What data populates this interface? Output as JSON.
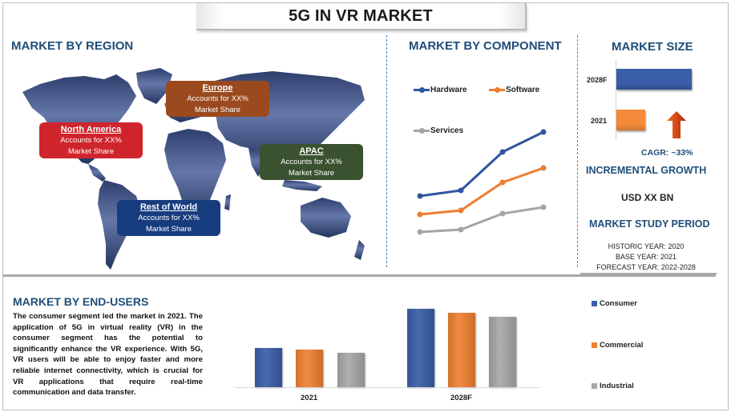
{
  "title": "5G IN VR MARKET",
  "region": {
    "heading": "MARKET BY REGION",
    "boxes": [
      {
        "name": "North America",
        "line1": "Accounts for XX%",
        "line2": "Market Share",
        "color": "#d0242c"
      },
      {
        "name": "Europe",
        "line1": "Accounts for XX%",
        "line2": "Market Share",
        "color": "#9a4a1e"
      },
      {
        "name": "APAC",
        "line1": "Accounts for XX%",
        "line2": "Market Share",
        "color": "#3b5230"
      },
      {
        "name": "Rest of World",
        "line1": "Accounts for XX%",
        "line2": "Market Share",
        "color": "#173c7e"
      }
    ]
  },
  "component": {
    "heading": "MARKET BY COMPONENT",
    "legend": [
      {
        "label": "Hardware",
        "color": "#2e56a0"
      },
      {
        "label": "Software",
        "color": "#ed7d31"
      },
      {
        "label": "Services",
        "color": "#a5a5a5"
      }
    ]
  },
  "market_size": {
    "heading": "MARKET SIZE",
    "bars": [
      {
        "label": "2028F",
        "color": "#3a5ea8"
      },
      {
        "label": "2021",
        "color": "#f58a3a"
      }
    ],
    "cagr_label": "CAGR:  ~33%",
    "arrow_color": "#d43c0f"
  },
  "incremental": {
    "heading": "INCREMENTAL GROWTH",
    "value": "USD XX BN"
  },
  "study_period": {
    "heading": "MARKET STUDY PERIOD",
    "historic": "HISTORIC YEAR: 2020",
    "base": "BASE YEAR: 2021",
    "forecast": "FORECAST YEAR: 2022-2028"
  },
  "end_users": {
    "heading": "MARKET BY END-USERS",
    "paragraph": "The consumer segment led the market in 2021. The application of 5G in virtual reality (VR) in the consumer segment has the potential to significantly enhance the VR experience. With 5G, VR users will be able to enjoy faster and more reliable internet connectivity, which is crucial for VR applications that require real-time communication and data transfer.",
    "legend": [
      {
        "label": "Consumer",
        "color": "#3a5ea8"
      },
      {
        "label": "Commercial",
        "color": "#f08030"
      },
      {
        "label": "Industrial",
        "color": "#a8a8a8"
      }
    ],
    "x_labels": [
      "2021",
      "2028F"
    ]
  },
  "chart_data": [
    {
      "type": "line",
      "title": "MARKET BY COMPONENT",
      "x": [
        1,
        2,
        3,
        4
      ],
      "xlabel": "",
      "ylabel": "",
      "grid": false,
      "legend_position": "top",
      "series": [
        {
          "name": "Hardware",
          "values": [
            45,
            52,
            100,
            125
          ],
          "color": "#2e56a0"
        },
        {
          "name": "Software",
          "values": [
            22,
            27,
            62,
            80
          ],
          "color": "#ed7d31"
        },
        {
          "name": "Services",
          "values": [
            0,
            3,
            23,
            31
          ],
          "color": "#a5a5a5"
        }
      ],
      "note": "relative values, no axis shown"
    },
    {
      "type": "bar",
      "orientation": "horizontal",
      "title": "MARKET SIZE",
      "categories": [
        "2028F",
        "2021"
      ],
      "values": [
        94,
        36
      ],
      "annotations": [
        "CAGR: ~33%"
      ],
      "note": "relative bar lengths, no axis values shown"
    },
    {
      "type": "bar",
      "title": "MARKET BY END-USERS",
      "categories": [
        "2021",
        "2028F"
      ],
      "series": [
        {
          "name": "Consumer",
          "values": [
            49,
            98
          ],
          "color": "#3a5ea8"
        },
        {
          "name": "Commercial",
          "values": [
            47,
            93
          ],
          "color": "#f08030"
        },
        {
          "name": "Industrial",
          "values": [
            43,
            88
          ],
          "color": "#a8a8a8"
        }
      ],
      "legend_position": "right",
      "grid": false,
      "note": "relative bar heights, no axis values shown"
    }
  ]
}
